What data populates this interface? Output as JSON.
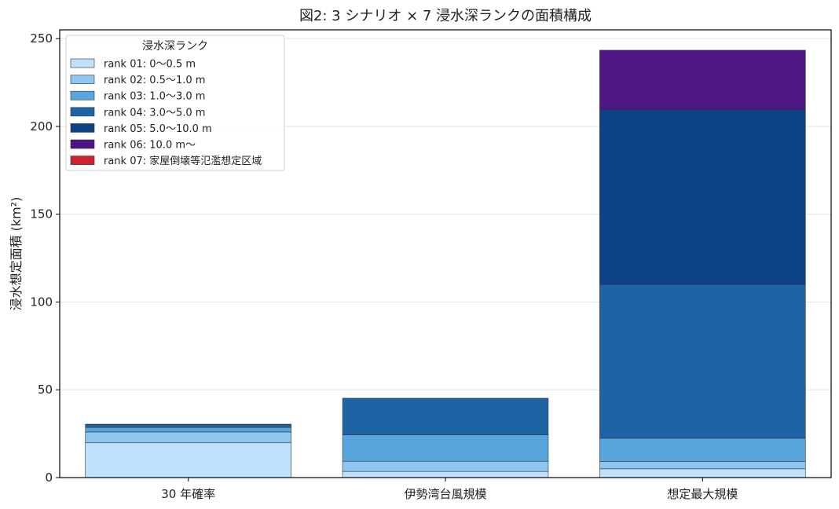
{
  "chart_data": {
    "type": "bar",
    "stacked": true,
    "title": "図2: 3 シナリオ × 7 浸水深ランクの面積構成",
    "xlabel": "",
    "ylabel": "浸水想定面積 (km²)",
    "ylim": [
      0,
      255
    ],
    "yticks": [
      0,
      50,
      100,
      150,
      200,
      250
    ],
    "grid": "y",
    "categories": [
      "30 年確率",
      "伊勢湾台風規模",
      "想定最大規模"
    ],
    "legend": {
      "title": "浸水深ランク",
      "placement": "top-left"
    },
    "series": [
      {
        "name": "rank 01: 0〜0.5 m",
        "color": "#bfe1fb",
        "values": [
          19.8,
          3.5,
          5.0
        ]
      },
      {
        "name": "rank 02: 0.5〜1.0 m",
        "color": "#8ec6ef",
        "values": [
          6.2,
          5.8,
          4.2
        ]
      },
      {
        "name": "rank 03: 1.0〜3.0 m",
        "color": "#58a6dd",
        "values": [
          2.6,
          15.0,
          13.2
        ]
      },
      {
        "name": "rank 04: 3.0〜5.0 m",
        "color": "#1e64a5",
        "values": [
          1.6,
          20.9,
          87.6
        ]
      },
      {
        "name": "rank 05: 5.0〜10.0 m",
        "color": "#0e4286",
        "values": [
          0.2,
          0.0,
          99.5
        ]
      },
      {
        "name": "rank 06: 10.0 m〜",
        "color": "#4e1585",
        "values": [
          0.0,
          0.0,
          33.9
        ]
      },
      {
        "name": "rank 07: 家屋倒壊等氾濫想定区域",
        "color": "#d0212c",
        "values": [
          0.0,
          0.0,
          0.0
        ]
      }
    ]
  }
}
